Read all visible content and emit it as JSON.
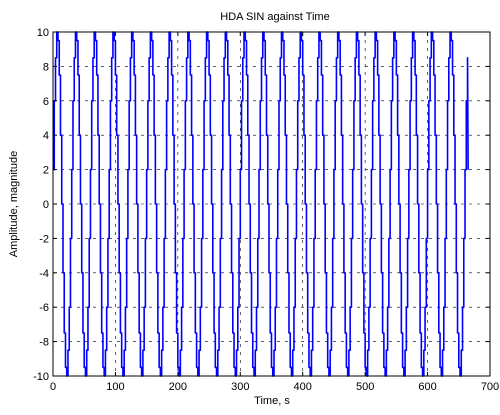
{
  "chart_data": {
    "type": "line",
    "title": "HDA SIN against Time",
    "xlabel": "Time, s",
    "ylabel": "Amplitude, magnitude",
    "xlim": [
      0,
      700
    ],
    "ylim": [
      -10,
      10
    ],
    "xticks": [
      0,
      100,
      200,
      300,
      400,
      500,
      600,
      700
    ],
    "yticks": [
      -10,
      -8,
      -6,
      -4,
      -2,
      0,
      2,
      4,
      6,
      8,
      10
    ],
    "grid": "dashed",
    "series": [
      {
        "color": "#0000ff",
        "amplitude": 10,
        "period": 30,
        "x_start": 0,
        "x_end": 665,
        "y_start": 2,
        "y_end": 2,
        "quantized": true
      }
    ]
  }
}
